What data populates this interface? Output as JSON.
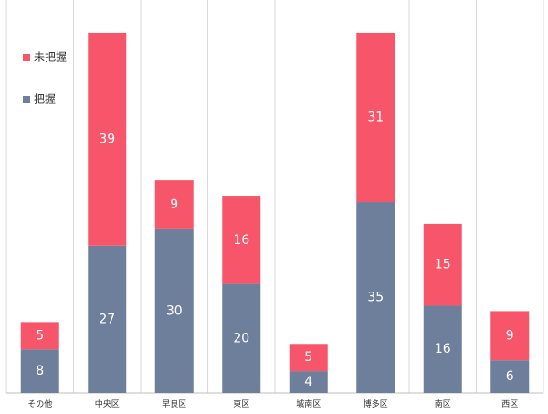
{
  "chart_data": {
    "type": "bar",
    "stacked": true,
    "categories": [
      "その他",
      "中央区",
      "早良区",
      "東区",
      "城南区",
      "博多区",
      "南区",
      "西区"
    ],
    "series": [
      {
        "name": "把握",
        "values": [
          8,
          27,
          30,
          20,
          4,
          35,
          16,
          6
        ],
        "color": "#6e7f9b"
      },
      {
        "name": "未把握",
        "values": [
          5,
          39,
          9,
          16,
          5,
          31,
          15,
          9
        ],
        "color": "#f7566a"
      }
    ],
    "ylim": [
      0,
      68
    ],
    "legend_position": "top-left",
    "grid": "vertical separators",
    "title": "",
    "xlabel": "",
    "ylabel": ""
  }
}
